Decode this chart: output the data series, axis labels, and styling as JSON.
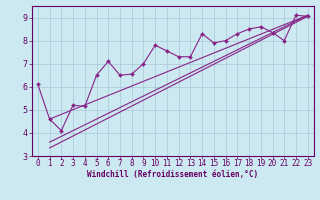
{
  "title": "",
  "xlabel": "Windchill (Refroidissement éolien,°C)",
  "bg_color": "#cce8f0",
  "line_color": "#882288",
  "grid_color": "#aac8d8",
  "text_color": "#660066",
  "spine_color": "#660066",
  "xlim": [
    -0.5,
    23.5
  ],
  "ylim": [
    3.0,
    9.5
  ],
  "xticks": [
    0,
    1,
    2,
    3,
    4,
    5,
    6,
    7,
    8,
    9,
    10,
    11,
    12,
    13,
    14,
    15,
    16,
    17,
    18,
    19,
    20,
    21,
    22,
    23
  ],
  "yticks": [
    3,
    4,
    5,
    6,
    7,
    8,
    9
  ],
  "data_x": [
    0,
    1,
    2,
    3,
    4,
    5,
    6,
    7,
    8,
    9,
    10,
    11,
    12,
    13,
    14,
    15,
    16,
    17,
    18,
    19,
    20,
    21,
    22,
    23
  ],
  "data_y": [
    6.1,
    4.6,
    4.1,
    5.2,
    5.15,
    6.5,
    7.1,
    6.5,
    6.55,
    7.0,
    7.8,
    7.55,
    7.3,
    7.3,
    8.3,
    7.9,
    8.0,
    8.3,
    8.5,
    8.6,
    8.35,
    8.0,
    9.1,
    9.05
  ],
  "line1_x": [
    1,
    23
  ],
  "line1_y": [
    3.35,
    9.05
  ],
  "line2_x": [
    1,
    23
  ],
  "line2_y": [
    3.6,
    9.1
  ],
  "line3_x": [
    1,
    23
  ],
  "line3_y": [
    4.6,
    9.1
  ],
  "xlabel_fontsize": 5.5,
  "tick_fontsize": 5.5
}
